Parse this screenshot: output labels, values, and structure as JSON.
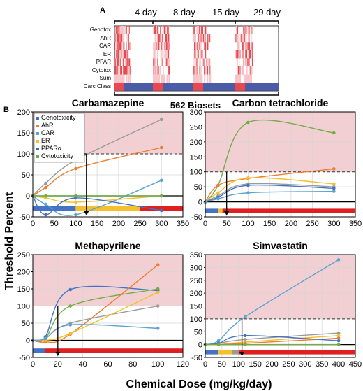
{
  "panel_a": {
    "letter": "A",
    "timepoints": [
      "4 day",
      "8 day",
      "15 day",
      "29 day"
    ],
    "rows": [
      "Genotox",
      "AhR",
      "CAR",
      "ER",
      "PPAR",
      "Cytotox",
      "Sum",
      "Carc Class"
    ],
    "footer": "562 Biosets",
    "colors": {
      "heat": "#e8484f",
      "heat_light": "#f7c5c8",
      "carc": "#4a5ba8"
    }
  },
  "panel_b": {
    "letter": "B",
    "ylabel": "Threshold Percent",
    "xlabel": "Chemical Dose (mg/kg/day)",
    "threshold": 100,
    "shade_color": "#f2cfd2",
    "legend": [
      "Genotoxicity",
      "AhR",
      "CAR",
      "ER",
      "PPARα",
      "Cytotoxicity"
    ]
  },
  "chart_data": [
    {
      "type": "line",
      "title": "Carbamazepine",
      "xlim": [
        0,
        350
      ],
      "ylim": [
        -50,
        200
      ],
      "xticks": [
        0,
        50,
        100,
        150,
        200,
        250,
        300,
        350
      ],
      "yticks": [
        -50,
        0,
        50,
        100,
        150,
        200
      ],
      "arrow_x": 125,
      "bars": [
        {
          "x0": 0,
          "x1": 100,
          "color": "#4472c4"
        },
        {
          "x0": 100,
          "x1": 250,
          "color": "#f5c02c"
        },
        {
          "x0": 250,
          "x1": 350,
          "color": "#e02020"
        }
      ],
      "series": [
        {
          "color": "#9a9a9a",
          "x": [
            0,
            30,
            100,
            300
          ],
          "y": [
            0,
            30,
            85,
            182
          ]
        },
        {
          "color": "#ed7d31",
          "x": [
            0,
            30,
            100,
            300
          ],
          "y": [
            0,
            20,
            65,
            115
          ]
        },
        {
          "color": "#5ba3d0",
          "x": [
            0,
            30,
            100,
            300
          ],
          "y": [
            0,
            -20,
            -45,
            37
          ]
        },
        {
          "color": "#f5c02c",
          "x": [
            0,
            30,
            100,
            300
          ],
          "y": [
            0,
            -5,
            -15,
            0
          ]
        },
        {
          "color": "#4472c4",
          "x": [
            0,
            30,
            100,
            300
          ],
          "y": [
            0,
            -45,
            -5,
            -35
          ]
        },
        {
          "color": "#70ad47",
          "x": [
            0,
            30,
            100,
            300
          ],
          "y": [
            0,
            0,
            0,
            0
          ]
        }
      ]
    },
    {
      "type": "line",
      "title": "Carbon tetrachloride",
      "xlim": [
        0,
        350
      ],
      "ylim": [
        -50,
        300
      ],
      "xticks": [
        0,
        50,
        100,
        150,
        200,
        250,
        300,
        350
      ],
      "yticks": [
        -50,
        0,
        50,
        100,
        150,
        200,
        250,
        300
      ],
      "arrow_x": 50,
      "bars": [
        {
          "x0": 0,
          "x1": 30,
          "color": "#4472c4"
        },
        {
          "x0": 30,
          "x1": 40,
          "color": "#f5c02c"
        },
        {
          "x0": 40,
          "x1": 350,
          "color": "#e02020"
        }
      ],
      "series": [
        {
          "color": "#70ad47",
          "x": [
            0,
            30,
            100,
            300
          ],
          "y": [
            0,
            55,
            265,
            230
          ]
        },
        {
          "color": "#ed7d31",
          "x": [
            0,
            30,
            100,
            300
          ],
          "y": [
            0,
            55,
            78,
            110
          ]
        },
        {
          "color": "#f5c02c",
          "x": [
            0,
            30,
            100,
            300
          ],
          "y": [
            0,
            30,
            80,
            60
          ]
        },
        {
          "color": "#9a9a9a",
          "x": [
            0,
            30,
            100,
            300
          ],
          "y": [
            0,
            20,
            60,
            50
          ]
        },
        {
          "color": "#4472c4",
          "x": [
            0,
            30,
            100,
            300
          ],
          "y": [
            0,
            15,
            55,
            45
          ]
        },
        {
          "color": "#5ba3d0",
          "x": [
            0,
            30,
            100,
            300
          ],
          "y": [
            0,
            10,
            30,
            35
          ]
        }
      ]
    },
    {
      "type": "line",
      "title": "Methapyrilene",
      "xlim": [
        0,
        120
      ],
      "ylim": [
        -50,
        250
      ],
      "xticks": [
        0,
        20,
        40,
        60,
        80,
        100,
        120
      ],
      "yticks": [
        -50,
        0,
        50,
        100,
        150,
        200,
        250
      ],
      "arrow_x": 20,
      "bars": [
        {
          "x0": 0,
          "x1": 10,
          "color": "#4472c4"
        },
        {
          "x0": 10,
          "x1": 120,
          "color": "#e02020"
        }
      ],
      "series": [
        {
          "color": "#4472c4",
          "x": [
            0,
            10,
            30,
            100
          ],
          "y": [
            0,
            10,
            148,
            145
          ]
        },
        {
          "color": "#70ad47",
          "x": [
            0,
            10,
            30,
            100
          ],
          "y": [
            0,
            5,
            100,
            150
          ]
        },
        {
          "color": "#ed7d31",
          "x": [
            0,
            10,
            30,
            100
          ],
          "y": [
            0,
            -5,
            18,
            220
          ]
        },
        {
          "color": "#9a9a9a",
          "x": [
            0,
            10,
            30,
            100
          ],
          "y": [
            0,
            5,
            50,
            100
          ]
        },
        {
          "color": "#f5c02c",
          "x": [
            0,
            10,
            30,
            100
          ],
          "y": [
            0,
            0,
            20,
            140
          ]
        },
        {
          "color": "#5ba3d0",
          "x": [
            0,
            10,
            30,
            100
          ],
          "y": [
            0,
            5,
            45,
            35
          ]
        }
      ]
    },
    {
      "type": "line",
      "title": "Simvastatin",
      "xlim": [
        0,
        450
      ],
      "ylim": [
        -50,
        350
      ],
      "xticks": [
        0,
        50,
        100,
        150,
        200,
        250,
        300,
        350,
        400,
        450
      ],
      "yticks": [
        -50,
        0,
        50,
        100,
        150,
        200,
        250,
        300,
        350
      ],
      "arrow_x": 110,
      "bars": [
        {
          "x0": 0,
          "x1": 40,
          "color": "#4472c4"
        },
        {
          "x0": 40,
          "x1": 80,
          "color": "#f5c02c"
        },
        {
          "x0": 80,
          "x1": 100,
          "color": "#9a9a9a"
        },
        {
          "x0": 100,
          "x1": 450,
          "color": "#e02020"
        }
      ],
      "series": [
        {
          "color": "#5ba3d0",
          "x": [
            0,
            40,
            120,
            400
          ],
          "y": [
            0,
            15,
            108,
            330
          ]
        },
        {
          "color": "#9a9a9a",
          "x": [
            0,
            40,
            120,
            400
          ],
          "y": [
            0,
            5,
            20,
            45
          ]
        },
        {
          "color": "#f5c02c",
          "x": [
            0,
            40,
            120,
            400
          ],
          "y": [
            0,
            0,
            10,
            35
          ]
        },
        {
          "color": "#ed7d31",
          "x": [
            0,
            40,
            120,
            400
          ],
          "y": [
            0,
            0,
            5,
            25
          ]
        },
        {
          "color": "#4472c4",
          "x": [
            0,
            40,
            120,
            400
          ],
          "y": [
            0,
            5,
            35,
            15
          ]
        },
        {
          "color": "#70ad47",
          "x": [
            0,
            40,
            120,
            400
          ],
          "y": [
            0,
            0,
            0,
            0
          ]
        }
      ]
    }
  ]
}
